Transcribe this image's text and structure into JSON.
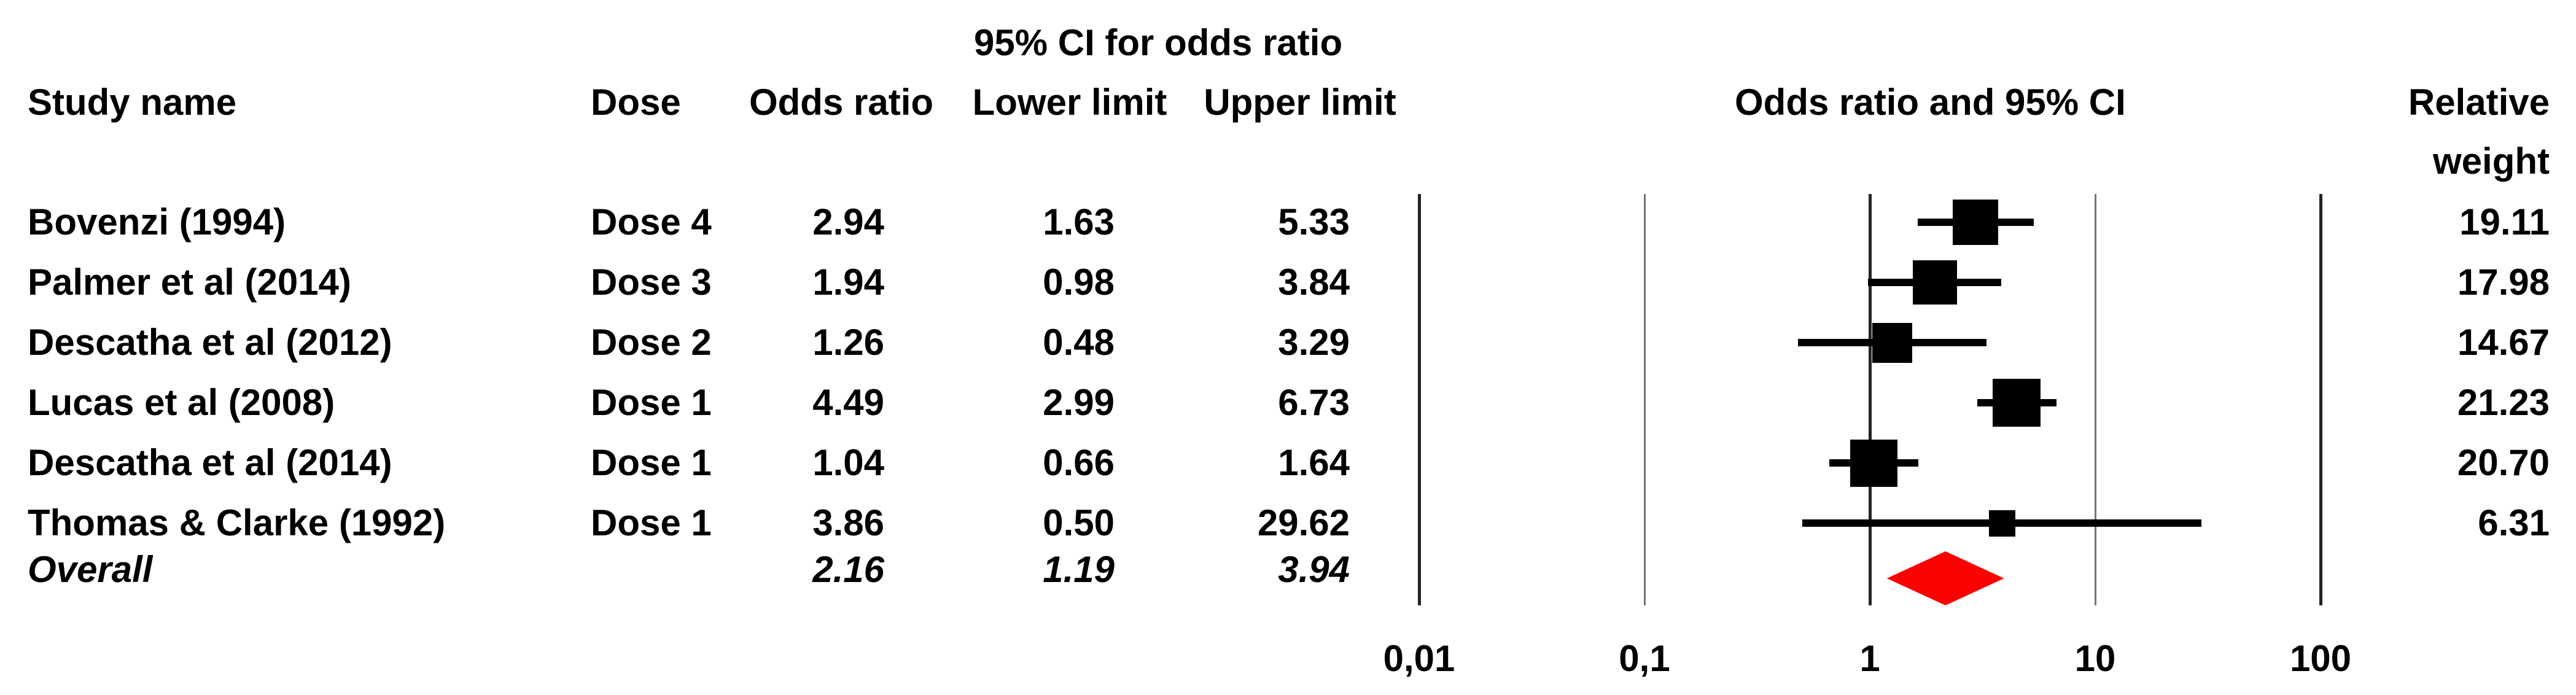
{
  "table": {
    "headers": {
      "study": "Study name",
      "dose": "Dose",
      "odds_ratio": "Odds ratio",
      "lower": "Lower limit",
      "upper": "Upper limit",
      "plot": "Odds ratio and 95% CI",
      "weight_line1": "Relative",
      "weight_line2": "weight"
    }
  },
  "chart_data": {
    "type": "forest",
    "title": "95% CI for odds ratio",
    "x_scale": "log10",
    "x_ticks": [
      0.01,
      0.1,
      1,
      10,
      100
    ],
    "x_tick_labels": [
      "0,01",
      "0,1",
      "1",
      "10",
      "100"
    ],
    "x_range": [
      0.01,
      100
    ],
    "grid": "vertical-log-decades",
    "legend_position": "none",
    "series": [
      {
        "study": "Bovenzi (1994)",
        "dose": "Dose 4",
        "odds_ratio": 2.94,
        "lower": 1.63,
        "upper": 5.33,
        "weight": 19.11
      },
      {
        "study": "Palmer et al (2014)",
        "dose": "Dose 3",
        "odds_ratio": 1.94,
        "lower": 0.98,
        "upper": 3.84,
        "weight": 17.98
      },
      {
        "study": "Descatha et al (2012)",
        "dose": "Dose 2",
        "odds_ratio": 1.26,
        "lower": 0.48,
        "upper": 3.29,
        "weight": 14.67
      },
      {
        "study": "Lucas et al (2008)",
        "dose": "Dose 1",
        "odds_ratio": 4.49,
        "lower": 2.99,
        "upper": 6.73,
        "weight": 21.23
      },
      {
        "study": "Descatha et al (2014)",
        "dose": "Dose 1",
        "odds_ratio": 1.04,
        "lower": 0.66,
        "upper": 1.64,
        "weight": 20.7
      },
      {
        "study": "Thomas & Clarke (1992)",
        "dose": "Dose 1",
        "odds_ratio": 3.86,
        "lower": 0.5,
        "upper": 29.62,
        "weight": 6.31
      }
    ],
    "overall": {
      "study": "Overall",
      "odds_ratio": 2.16,
      "lower": 1.19,
      "upper": 3.94
    }
  },
  "colors": {
    "text": "#000000",
    "marker": "#000000",
    "diamond": "#fa0202",
    "grid_major": "#242424",
    "grid_minor": "#757575"
  }
}
